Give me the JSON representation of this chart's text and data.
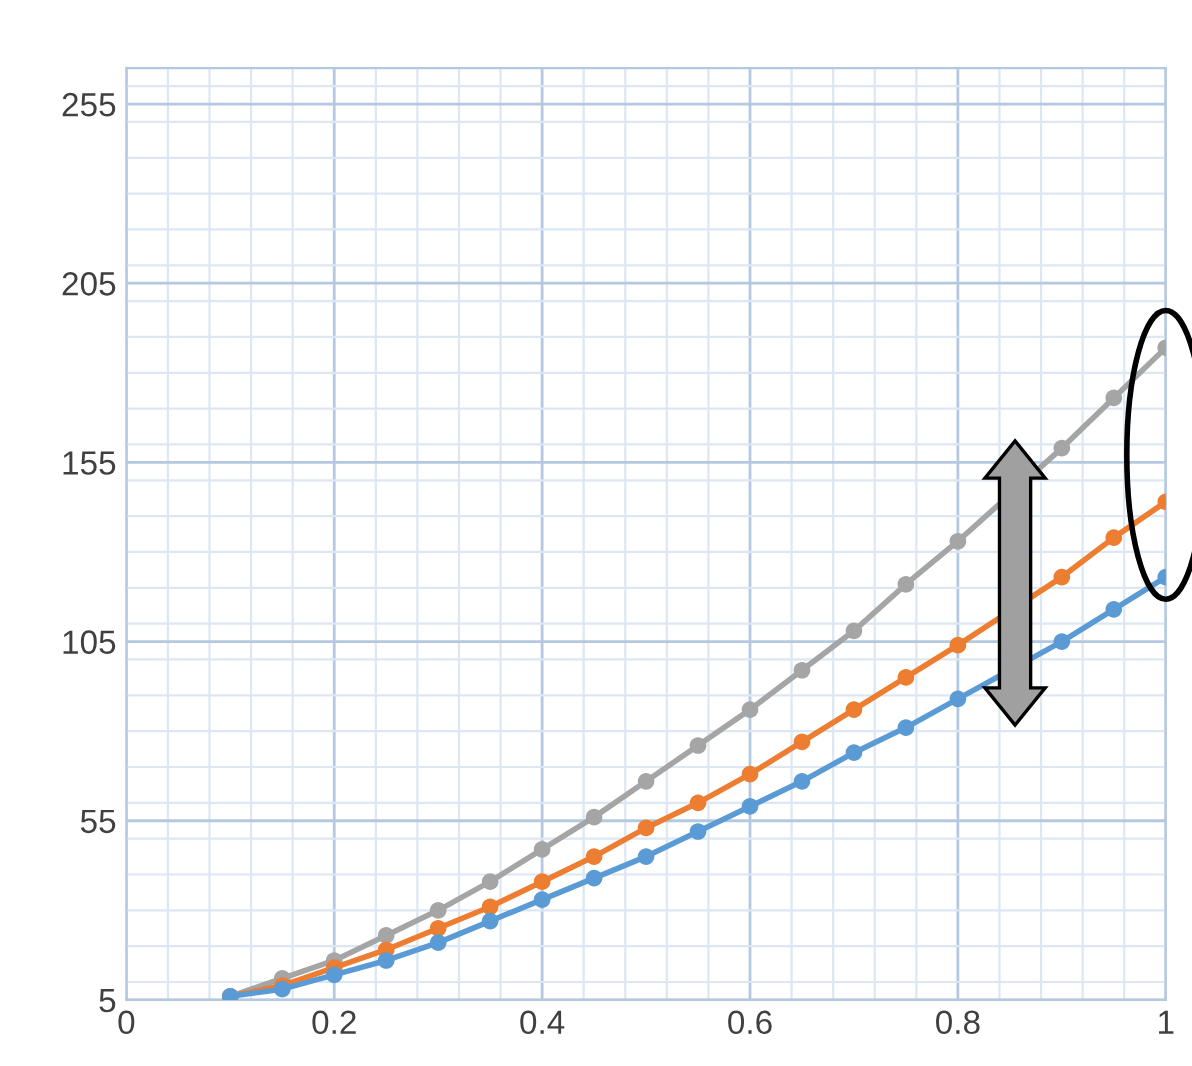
{
  "chart_data": {
    "type": "line",
    "x": [
      0.1,
      0.15,
      0.2,
      0.25,
      0.3,
      0.35,
      0.4,
      0.45,
      0.5,
      0.55,
      0.6,
      0.65,
      0.7,
      0.75,
      0.8,
      0.85,
      0.9,
      0.95,
      1.0
    ],
    "series": [
      {
        "color": "#a5a5a5",
        "values": [
          6,
          11,
          16,
          23,
          30,
          38,
          47,
          56,
          66,
          76,
          86,
          97,
          108,
          121,
          133,
          null,
          159,
          173,
          187
        ]
      },
      {
        "color": "#ed7d31",
        "values": [
          6,
          9,
          14,
          19,
          25,
          31,
          38,
          45,
          53,
          60,
          68,
          77,
          86,
          95,
          104,
          null,
          123,
          134,
          144
        ]
      },
      {
        "color": "#5b9bd5",
        "values": [
          6,
          8,
          12,
          16,
          21,
          27,
          33,
          39,
          45,
          52,
          59,
          66,
          74,
          81,
          89,
          null,
          105,
          114,
          123
        ]
      }
    ],
    "xlim": [
      0,
      1
    ],
    "ylim": [
      5,
      265
    ],
    "xticks": [
      0,
      0.2,
      0.4,
      0.6,
      0.8,
      1
    ],
    "yticks": [
      5,
      55,
      105,
      155,
      205,
      255
    ],
    "grid": true,
    "marker": "circle",
    "line_style": "solid"
  }
}
